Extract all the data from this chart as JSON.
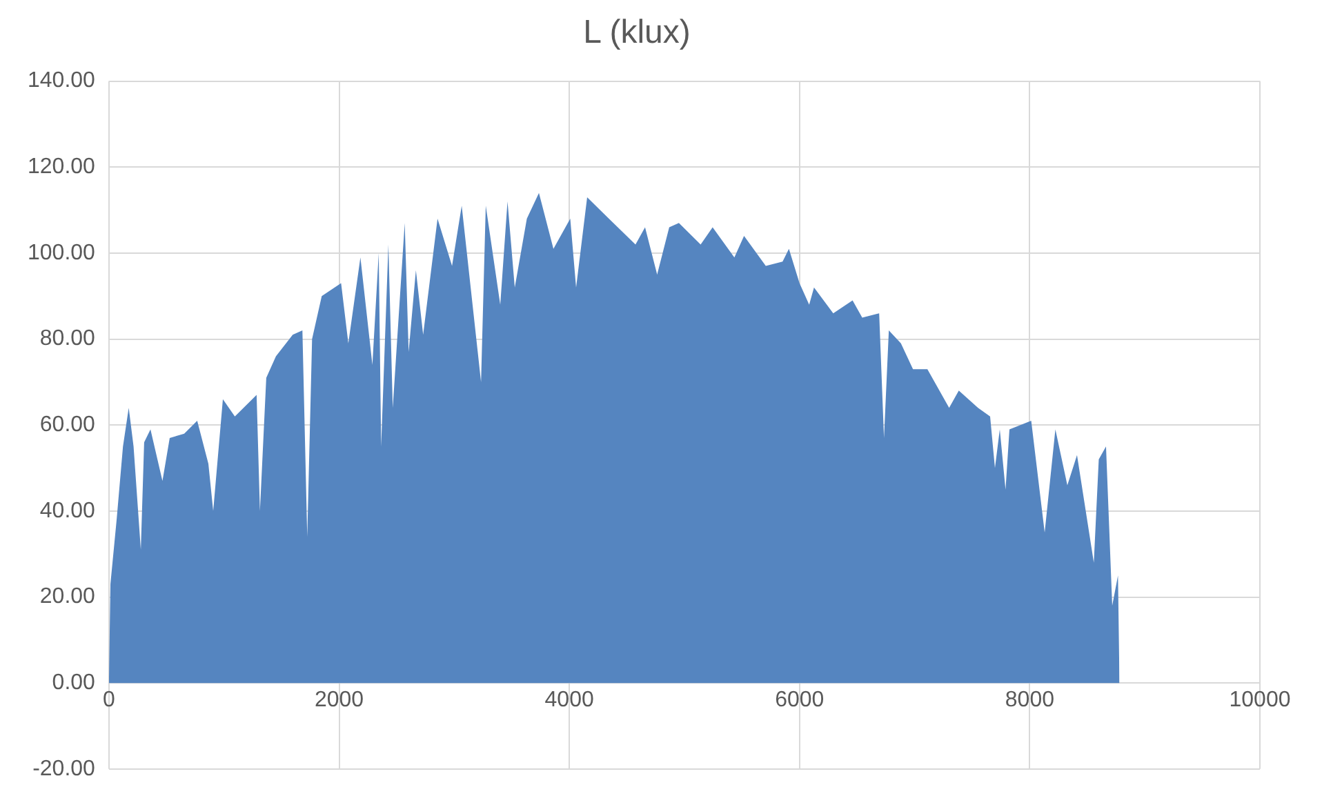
{
  "chart_data": {
    "type": "area",
    "title": "L (klux)",
    "color": "#5585c0",
    "x": [
      0,
      13,
      67,
      122,
      172,
      214,
      277,
      306,
      361,
      465,
      528,
      654,
      767,
      864,
      906,
      990,
      1094,
      1283,
      1312,
      1367,
      1451,
      1597,
      1681,
      1723,
      1765,
      1849,
      2017,
      2080,
      2185,
      2289,
      2344,
      2365,
      2428,
      2466,
      2570,
      2604,
      2667,
      2730,
      2855,
      2981,
      3065,
      3233,
      3274,
      3400,
      3463,
      3526,
      3631,
      3736,
      3862,
      4008,
      4059,
      4155,
      4344,
      4575,
      4658,
      4763,
      4868,
      4952,
      5141,
      5245,
      5434,
      5518,
      5707,
      5853,
      5908,
      6000,
      6084,
      6126,
      6293,
      6461,
      6545,
      6692,
      6734,
      6776,
      6881,
      6986,
      7111,
      7300,
      7384,
      7551,
      7656,
      7698,
      7740,
      7790,
      7824,
      8013,
      8130,
      8223,
      8327,
      8411,
      8557,
      8600,
      8663,
      8717,
      8767,
      8780
    ],
    "values": [
      0,
      23,
      38,
      55,
      64,
      55,
      31,
      56,
      59,
      47,
      57,
      58,
      61,
      51,
      40,
      66,
      62,
      67,
      40,
      71,
      76,
      81,
      82,
      34,
      80,
      90,
      93,
      79,
      99,
      74,
      100,
      55,
      102,
      64,
      107,
      77,
      96,
      81,
      108,
      97,
      111,
      70,
      111,
      88,
      112,
      92,
      108,
      114,
      101,
      108,
      92,
      113,
      108,
      102,
      106,
      95,
      106,
      107,
      102,
      106,
      99,
      104,
      97,
      98,
      101,
      93,
      88,
      92,
      86,
      89,
      85,
      86,
      57,
      82,
      79,
      73,
      73,
      64,
      68,
      64,
      62,
      50,
      59,
      45,
      59,
      61,
      35,
      59,
      46,
      53,
      28,
      52,
      55,
      18,
      25,
      0
    ],
    "xlim": [
      0,
      10000
    ],
    "xticks": [
      0,
      2000,
      4000,
      6000,
      8000,
      10000
    ],
    "ylim": [
      -20,
      140
    ],
    "yticks": [
      {
        "value": -20,
        "label": "-20.00"
      },
      {
        "value": 0,
        "label": "0.00"
      },
      {
        "value": 20,
        "label": "20.00"
      },
      {
        "value": 40,
        "label": "40.00"
      },
      {
        "value": 60,
        "label": "60.00"
      },
      {
        "value": 80,
        "label": "80.00"
      },
      {
        "value": 100,
        "label": "100.00"
      },
      {
        "value": 120,
        "label": "120.00"
      },
      {
        "value": 140,
        "label": "140.00"
      }
    ],
    "grid": true
  }
}
